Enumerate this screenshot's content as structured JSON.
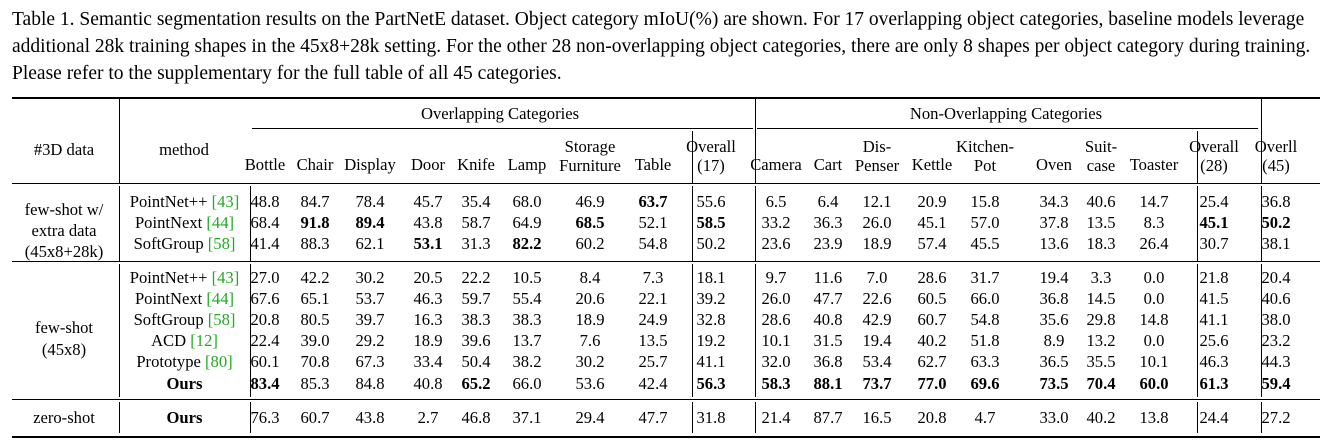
{
  "caption": "Table 1. Semantic segmentation results on the PartNetE dataset. Object category mIoU(%) are shown. For 17 overlapping object categories, baseline models leverage additional 28k training shapes in the 45x8+28k setting. For the other 28 non-overlapping object categories, there are only 8 shapes per object category during training. Please refer to the supplementary for the full table of all 45 categories.",
  "header": {
    "col_3d": "#3D data",
    "col_method": "method",
    "group_overlap": "Overlapping Categories",
    "group_nonoverlap": "Non-Overlapping Categories",
    "columns": [
      [
        "Bottle"
      ],
      [
        "Chair"
      ],
      [
        "Display"
      ],
      [
        "Door"
      ],
      [
        "Knife"
      ],
      [
        "Lamp"
      ],
      [
        "Storage",
        "Furniture"
      ],
      [
        "Table"
      ],
      [
        "Overall",
        "(17)"
      ],
      [
        "Camera"
      ],
      [
        "Cart"
      ],
      [
        "Dis-",
        "Penser"
      ],
      [
        "Kettle"
      ],
      [
        "Kitchen-",
        "Pot"
      ],
      [
        "Oven"
      ],
      [
        "Suit-",
        "case"
      ],
      [
        "Toaster"
      ],
      [
        "Overall",
        "(28)"
      ],
      [
        "Overll",
        "(45)"
      ]
    ]
  },
  "groups": [
    {
      "label": [
        "few-shot w/",
        "extra data",
        "(45x8+28k)"
      ],
      "rows": [
        {
          "method": "PointNet++",
          "cite": "[43]",
          "bold_method": false,
          "values": [
            "48.8",
            "84.7",
            "78.4",
            "45.7",
            "35.4",
            "68.0",
            "46.9",
            "63.7",
            "55.6",
            "6.5",
            "6.4",
            "12.1",
            "20.9",
            "15.8",
            "34.3",
            "40.6",
            "14.7",
            "25.4",
            "36.8"
          ],
          "bold": [
            7
          ]
        },
        {
          "method": "PointNext",
          "cite": "[44]",
          "bold_method": false,
          "values": [
            "68.4",
            "91.8",
            "89.4",
            "43.8",
            "58.7",
            "64.9",
            "68.5",
            "52.1",
            "58.5",
            "33.2",
            "36.3",
            "26.0",
            "45.1",
            "57.0",
            "37.8",
            "13.5",
            "8.3",
            "45.1",
            "50.2"
          ],
          "bold": [
            1,
            2,
            6,
            8,
            17,
            18
          ]
        },
        {
          "method": "SoftGroup",
          "cite": "[58]",
          "bold_method": false,
          "values": [
            "41.4",
            "88.3",
            "62.1",
            "53.1",
            "31.3",
            "82.2",
            "60.2",
            "54.8",
            "50.2",
            "23.6",
            "23.9",
            "18.9",
            "57.4",
            "45.5",
            "13.6",
            "18.3",
            "26.4",
            "30.7",
            "38.1"
          ],
          "bold": [
            3,
            5
          ]
        }
      ]
    },
    {
      "label": [
        "few-shot",
        "(45x8)"
      ],
      "rows": [
        {
          "method": "PointNet++",
          "cite": "[43]",
          "bold_method": false,
          "values": [
            "27.0",
            "42.2",
            "30.2",
            "20.5",
            "22.2",
            "10.5",
            "8.4",
            "7.3",
            "18.1",
            "9.7",
            "11.6",
            "7.0",
            "28.6",
            "31.7",
            "19.4",
            "3.3",
            "0.0",
            "21.8",
            "20.4"
          ],
          "bold": []
        },
        {
          "method": "PointNext",
          "cite": "[44]",
          "bold_method": false,
          "values": [
            "67.6",
            "65.1",
            "53.7",
            "46.3",
            "59.7",
            "55.4",
            "20.6",
            "22.1",
            "39.2",
            "26.0",
            "47.7",
            "22.6",
            "60.5",
            "66.0",
            "36.8",
            "14.5",
            "0.0",
            "41.5",
            "40.6"
          ],
          "bold": []
        },
        {
          "method": "SoftGroup",
          "cite": "[58]",
          "bold_method": false,
          "values": [
            "20.8",
            "80.5",
            "39.7",
            "16.3",
            "38.3",
            "38.3",
            "18.9",
            "24.9",
            "32.8",
            "28.6",
            "40.8",
            "42.9",
            "60.7",
            "54.8",
            "35.6",
            "29.8",
            "14.8",
            "41.1",
            "38.0"
          ],
          "bold": []
        },
        {
          "method": "ACD",
          "cite": "[12]",
          "bold_method": false,
          "values": [
            "22.4",
            "39.0",
            "29.2",
            "18.9",
            "39.6",
            "13.7",
            "7.6",
            "13.5",
            "19.2",
            "10.1",
            "31.5",
            "19.4",
            "40.2",
            "51.8",
            "8.9",
            "13.2",
            "0.0",
            "25.6",
            "23.2"
          ],
          "bold": []
        },
        {
          "method": "Prototype",
          "cite": "[80]",
          "bold_method": false,
          "values": [
            "60.1",
            "70.8",
            "67.3",
            "33.4",
            "50.4",
            "38.2",
            "30.2",
            "25.7",
            "41.1",
            "32.0",
            "36.8",
            "53.4",
            "62.7",
            "63.3",
            "36.5",
            "35.5",
            "10.1",
            "46.3",
            "44.3"
          ],
          "bold": []
        },
        {
          "method": "Ours",
          "cite": "",
          "bold_method": true,
          "values": [
            "83.4",
            "85.3",
            "84.8",
            "40.8",
            "65.2",
            "66.0",
            "53.6",
            "42.4",
            "56.3",
            "58.3",
            "88.1",
            "73.7",
            "77.0",
            "69.6",
            "73.5",
            "70.4",
            "60.0",
            "61.3",
            "59.4"
          ],
          "bold": [
            0,
            4,
            8,
            9,
            10,
            11,
            12,
            13,
            14,
            15,
            16,
            17,
            18
          ]
        }
      ]
    },
    {
      "label": [
        "zero-shot"
      ],
      "rows": [
        {
          "method": "Ours",
          "cite": "",
          "bold_method": true,
          "values": [
            "76.3",
            "60.7",
            "43.8",
            "2.7",
            "46.8",
            "37.1",
            "29.4",
            "47.7",
            "31.8",
            "21.4",
            "87.7",
            "16.5",
            "20.8",
            "4.7",
            "33.0",
            "40.2",
            "13.8",
            "24.4",
            "27.2"
          ],
          "bold": []
        }
      ]
    }
  ]
}
